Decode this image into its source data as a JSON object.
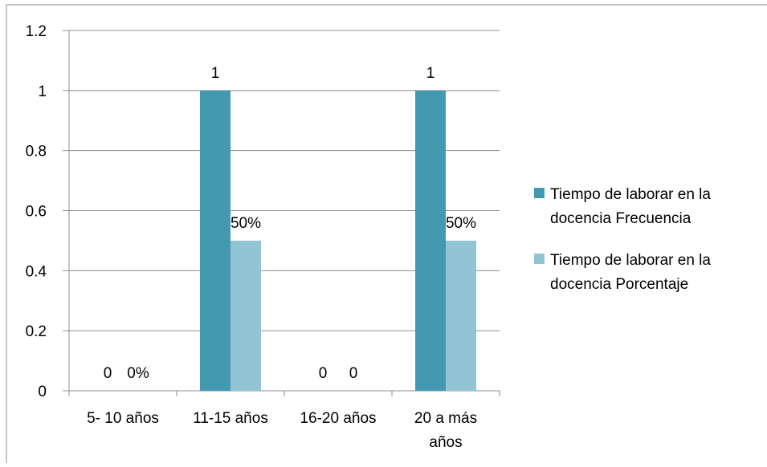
{
  "chart_data": {
    "type": "bar",
    "categories": [
      "5- 10  años",
      "11-15  años",
      "16-20 años",
      "20 a más años"
    ],
    "category_label_lines": [
      [
        "5- 10  años"
      ],
      [
        "11-15  años"
      ],
      [
        "16-20 años"
      ],
      [
        "20 a más",
        "años"
      ]
    ],
    "series": [
      {
        "name": "Tiempo de laborar en la docencia Frecuencia",
        "legend_lines": [
          "Tiempo de laborar en la",
          "docencia Frecuencia"
        ],
        "values": [
          0,
          1,
          0,
          1
        ],
        "data_labels": [
          "0",
          "1",
          "0",
          "1"
        ],
        "color": "#4399b0"
      },
      {
        "name": "Tiempo de laborar en la docencia Porcentaje",
        "legend_lines": [
          "Tiempo de laborar en la",
          "docencia Porcentaje"
        ],
        "values": [
          0,
          0.5,
          0,
          0.5
        ],
        "data_labels": [
          "0%",
          "50%",
          "0",
          "50%"
        ],
        "color": "#93c4d3"
      }
    ],
    "y_ticks": [
      "0",
      "0.2",
      "0.4",
      "0.6",
      "0.8",
      "1",
      "1.2"
    ],
    "ylim": [
      0,
      1.2
    ],
    "grid": true,
    "legend_position": "right",
    "title": "",
    "xlabel": "",
    "ylabel": ""
  }
}
